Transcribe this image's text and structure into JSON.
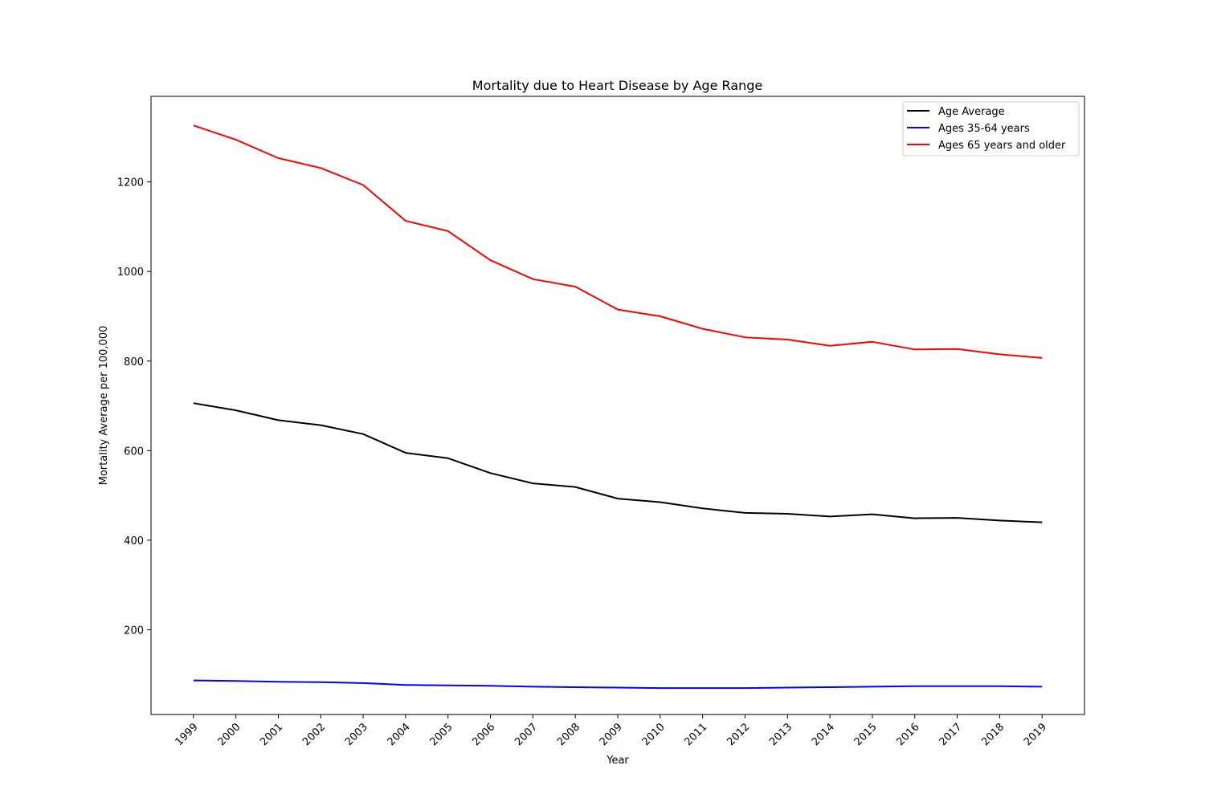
{
  "chart_data": {
    "type": "line",
    "title": "Mortality due to Heart Disease by Age Range",
    "xlabel": "Year",
    "ylabel": "Mortality Average per 100,000",
    "categories": [
      "1999",
      "2000",
      "2001",
      "2002",
      "2003",
      "2004",
      "2005",
      "2006",
      "2007",
      "2008",
      "2009",
      "2010",
      "2011",
      "2012",
      "2013",
      "2014",
      "2015",
      "2016",
      "2017",
      "2018",
      "2019"
    ],
    "ylim": [
      11,
      1391
    ],
    "yticks": [
      200,
      400,
      600,
      800,
      1000,
      1200
    ],
    "grid": false,
    "legend_position": "top-right",
    "series": [
      {
        "name": "Age Average",
        "color": "#000000",
        "values": [
          706,
          690,
          668,
          657,
          637,
          595,
          583,
          550,
          527,
          519,
          493,
          485,
          471,
          461,
          459,
          453,
          458,
          449,
          450,
          444,
          440
        ]
      },
      {
        "name": "Ages 35-64 years",
        "color": "#0000ff",
        "values": [
          87,
          86,
          84,
          83,
          81,
          77,
          76,
          75,
          73,
          72,
          71,
          70,
          70,
          70,
          71,
          72,
          73,
          74,
          74,
          74,
          73
        ]
      },
      {
        "name": "Ages 65 years and older",
        "color": "#ff0000",
        "values": [
          1326,
          1294,
          1253,
          1231,
          1193,
          1113,
          1090,
          1025,
          983,
          966,
          915,
          900,
          872,
          853,
          848,
          834,
          843,
          826,
          827,
          815,
          807
        ]
      }
    ]
  }
}
